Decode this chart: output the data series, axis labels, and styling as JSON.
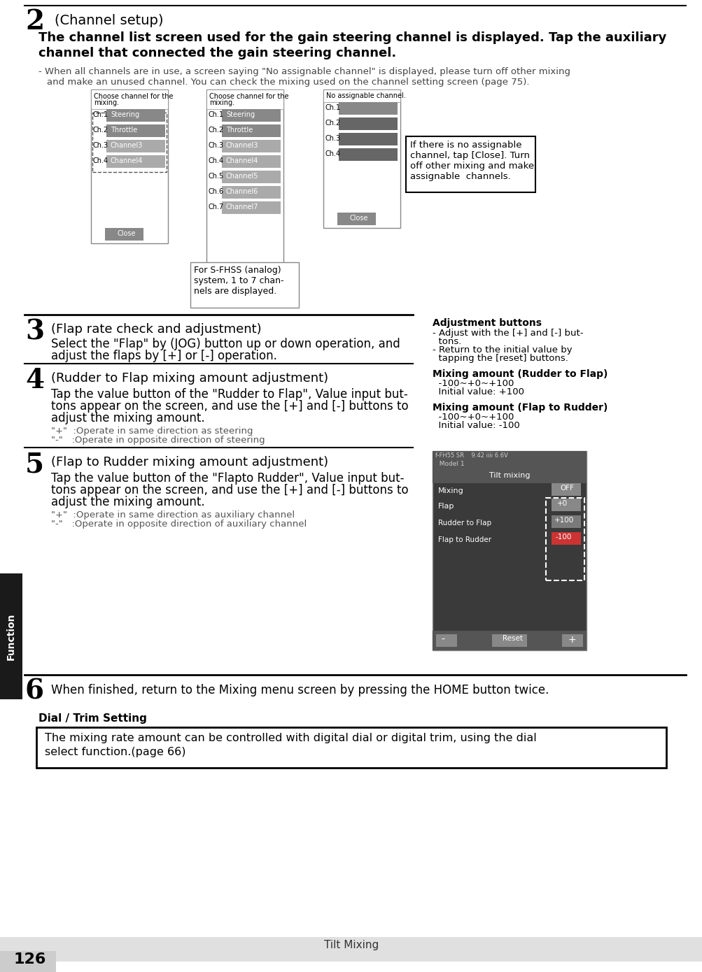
{
  "page_bg": "#ffffff",
  "title_num_2": "2",
  "title_text_2": "(Channel setup)",
  "body_bold_2": "The channel list screen used for the gain steering channel is displayed. Tap the auxiliary\nchannel that connected the gain steering channel.",
  "bullet_2": "- When all channels are in use, a screen saying \"No assignable channel\" is displayed, please turn off other mixing\n  and make an unused channel. You can check the mixing used on the channel setting screen (page 75).",
  "callout_sfhss": "For S-FHSS (analog)\nsystem, 1 to 7 chan-\nnels are displayed.",
  "callout_noassign": "If there is no assignable\nchannel, tap [Close]. Turn\noff other mixing and make\nassignable  channels.",
  "title_num_3": "3",
  "title_text_3": "(Flap rate check and adjustment)",
  "body_3": "Select the \"Flap\" by (JOG) button up or down operation, and\nadjust the flaps by [+] or [-] operation.",
  "adj_btn_title": "Adjustment buttons",
  "adj_btn_body": "- Adjust with the [+] and [-] but-\n  tons.\n- Return to the initial value by\n  tapping the [reset] buttons.",
  "mix_rudder_title": "Mixing amount (Rudder to Flap)",
  "mix_rudder_body": "  -100~+0~+100\n  Initial value: +100",
  "mix_flap_title": "Mixing amount (Flap to Rudder)",
  "mix_flap_body": "  -100~+0~+100\n  Initial value: -100",
  "title_num_4": "4",
  "title_text_4": "(Rudder to Flap mixing amount adjustment)",
  "body_4a": "Tap the value button of the \"Rudder to Flap\", Value input but-\ntons appear on the screen, and use the [+] and [-] buttons to\nadjust the mixing amount.",
  "body_4b": "\"+\"  :Operate in same direction as steering\n\"-\"   :Operate in opposite direction of steering",
  "title_num_5": "5",
  "title_text_5": "(Flap to Rudder mixing amount adjustment)",
  "body_5a": "Tap the value button of the \"Flapto Rudder\", Value input but-\ntons appear on the screen, and use the [+] and [-] buttons to\nadjust the mixing amount.",
  "body_5b": "\"+\"  :Operate in same direction as auxiliary channel\n\"-\"   :Operate in opposite direction of auxiliary channel",
  "title_num_6": "6",
  "body_6": "When finished, return to the Mixing menu screen by pressing the HOME button twice.",
  "dial_trim_title": "Dial / Trim Setting",
  "dial_trim_body": "The mixing rate amount can be controlled with digital dial or digital trim, using the dial\nselect function.(page 66)",
  "page_num": "126",
  "page_footer": "Tilt Mixing",
  "sidebar_text": "Function",
  "dark_bar_color": "#1a1a1a",
  "sidebar_color": "#2d2d2d",
  "screen_bg": "#3a3a3a",
  "screen_header": "#555555",
  "screen_green": "#7ab648",
  "screen_orange": "#d4783a",
  "screen_red": "#cc3333"
}
